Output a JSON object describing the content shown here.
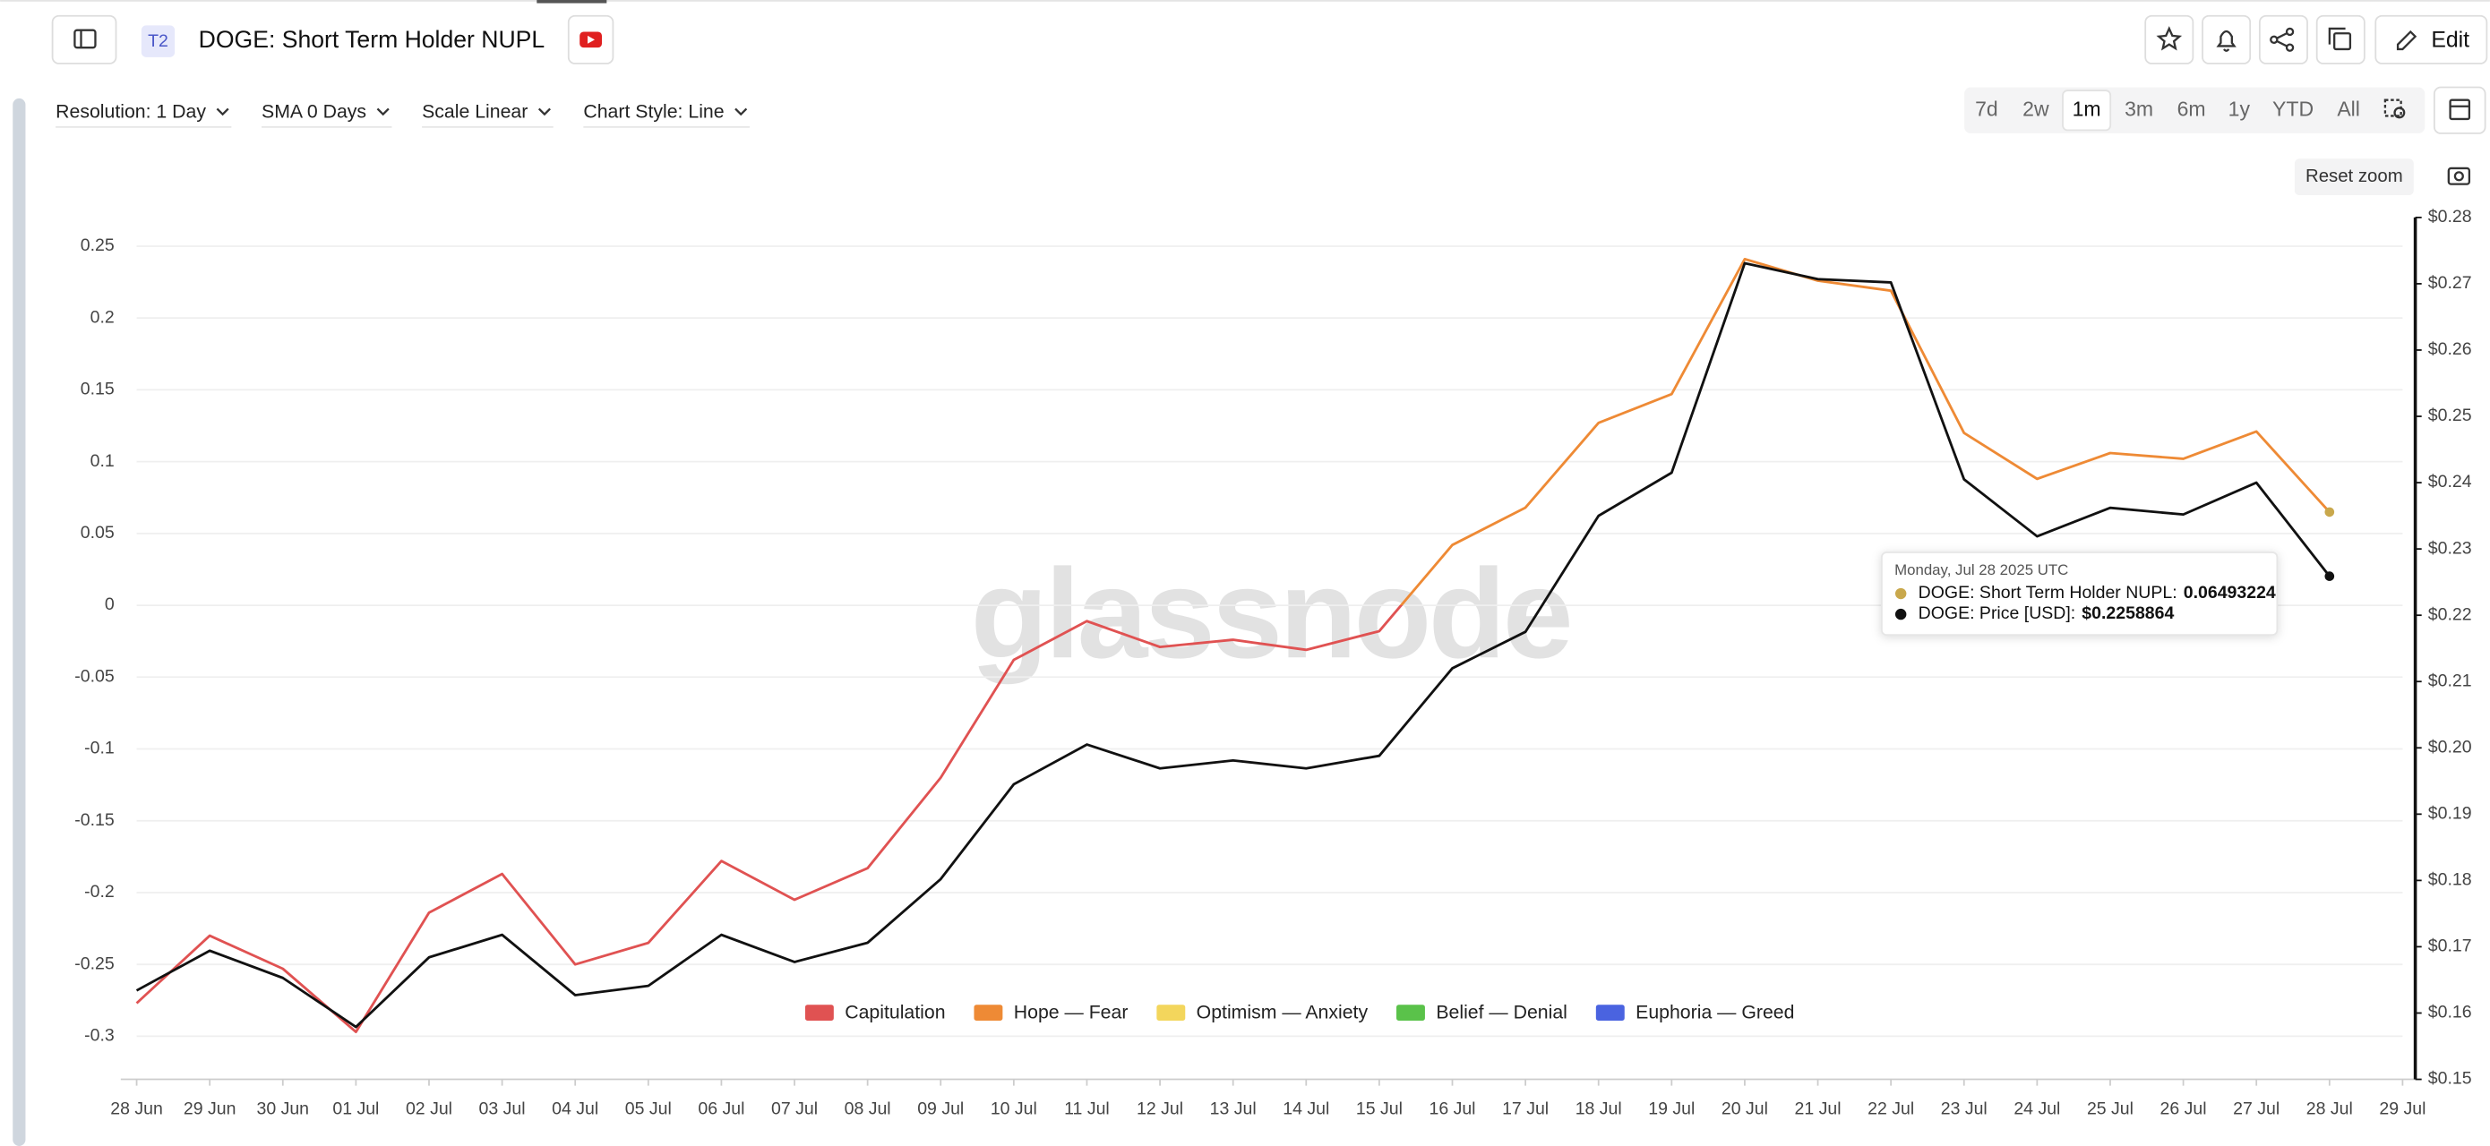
{
  "header": {
    "badge": "T2",
    "edit": "Edit"
  },
  "controls": [
    "Resolution: 1 Day",
    "SMA 0 Days",
    "Scale Linear",
    "Chart Style: Line"
  ],
  "ranges": [
    {
      "label": "7d",
      "active": false
    },
    {
      "label": "2w",
      "active": false
    },
    {
      "label": "1m",
      "active": true
    },
    {
      "label": "3m",
      "active": false
    },
    {
      "label": "6m",
      "active": false
    },
    {
      "label": "1y",
      "active": false
    },
    {
      "label": "YTD",
      "active": false
    },
    {
      "label": "All",
      "active": false
    }
  ],
  "reset_zoom": "Reset zoom",
  "watermark": "glassnode",
  "tooltip": {
    "date": "Monday, Jul 28 2025 UTC"
  },
  "chart_data": {
    "type": "line",
    "title": "DOGE: Short Term Holder NUPL",
    "categories": [
      "28 Jun",
      "29 Jun",
      "30 Jun",
      "01 Jul",
      "02 Jul",
      "03 Jul",
      "04 Jul",
      "05 Jul",
      "06 Jul",
      "07 Jul",
      "08 Jul",
      "09 Jul",
      "10 Jul",
      "11 Jul",
      "12 Jul",
      "13 Jul",
      "14 Jul",
      "15 Jul",
      "16 Jul",
      "17 Jul",
      "18 Jul",
      "19 Jul",
      "20 Jul",
      "21 Jul",
      "22 Jul",
      "23 Jul",
      "24 Jul",
      "25 Jul",
      "26 Jul",
      "27 Jul",
      "28 Jul",
      "29 Jul"
    ],
    "series": [
      {
        "name": "DOGE: Short Term Holder NUPL:",
        "color": "#c9a84c",
        "values": [
          -0.277,
          -0.23,
          -0.253,
          -0.297,
          -0.214,
          -0.187,
          -0.25,
          -0.235,
          -0.178,
          -0.205,
          -0.183,
          -0.12,
          -0.038,
          -0.011,
          -0.029,
          -0.024,
          -0.031,
          -0.018,
          0.042,
          0.068,
          0.127,
          0.147,
          0.241,
          0.226,
          0.219,
          0.12,
          0.088,
          0.106,
          0.102,
          0.121,
          0.06493224,
          null
        ]
      },
      {
        "name": "DOGE: Price [USD]:",
        "color": "#111111",
        "axis": "y2",
        "values": [
          0.1634,
          0.1694,
          0.1653,
          0.1579,
          0.1684,
          0.1718,
          0.1627,
          0.1641,
          0.1718,
          0.1677,
          0.1706,
          0.1802,
          0.1945,
          0.2005,
          0.1969,
          0.1981,
          0.1969,
          0.1988,
          0.212,
          0.2175,
          0.235,
          0.2415,
          0.2731,
          0.2707,
          0.2702,
          0.2405,
          0.2319,
          0.2362,
          0.2352,
          0.24,
          0.2258864,
          null
        ],
        "value_labels": [
          null,
          null,
          null,
          null,
          null,
          null,
          null,
          null,
          null,
          null,
          null,
          null,
          null,
          null,
          null,
          null,
          null,
          null,
          null,
          null,
          null,
          null,
          null,
          null,
          null,
          null,
          null,
          null,
          null,
          null,
          "$0.2258864",
          null
        ]
      }
    ],
    "zones": [
      {
        "name": "Capitulation",
        "color": "#e05252"
      },
      {
        "name": "Hope — Fear",
        "color": "#ee8a35"
      },
      {
        "name": "Optimism — Anxiety",
        "color": "#f3d65c"
      },
      {
        "name": "Belief — Denial",
        "color": "#5ac24a"
      },
      {
        "name": "Euphoria — Greed",
        "color": "#4a63e0"
      }
    ],
    "ylim": [
      -0.33,
      0.27
    ],
    "yticks": [
      0.25,
      0.2,
      0.15,
      0.1,
      0.05,
      0,
      -0.05,
      -0.1,
      -0.15,
      -0.2,
      -0.25,
      -0.3
    ],
    "y2lim": [
      0.15,
      0.28
    ],
    "y2ticks": [
      {
        "value": 0.28,
        "label": "$0.28"
      },
      {
        "value": 0.27,
        "label": "$0.27"
      },
      {
        "value": 0.26,
        "label": "$0.26"
      },
      {
        "value": 0.25,
        "label": "$0.25"
      },
      {
        "value": 0.24,
        "label": "$0.24"
      },
      {
        "value": 0.23,
        "label": "$0.23"
      },
      {
        "value": 0.22,
        "label": "$0.22"
      },
      {
        "value": 0.21,
        "label": "$0.21"
      },
      {
        "value": 0.2,
        "label": "$0.20"
      },
      {
        "value": 0.19,
        "label": "$0.19"
      },
      {
        "value": 0.18,
        "label": "$0.18"
      },
      {
        "value": 0.17,
        "label": "$0.17"
      },
      {
        "value": 0.16,
        "label": "$0.16"
      },
      {
        "value": 0.15,
        "label": "$0.15"
      }
    ],
    "grid": true
  }
}
